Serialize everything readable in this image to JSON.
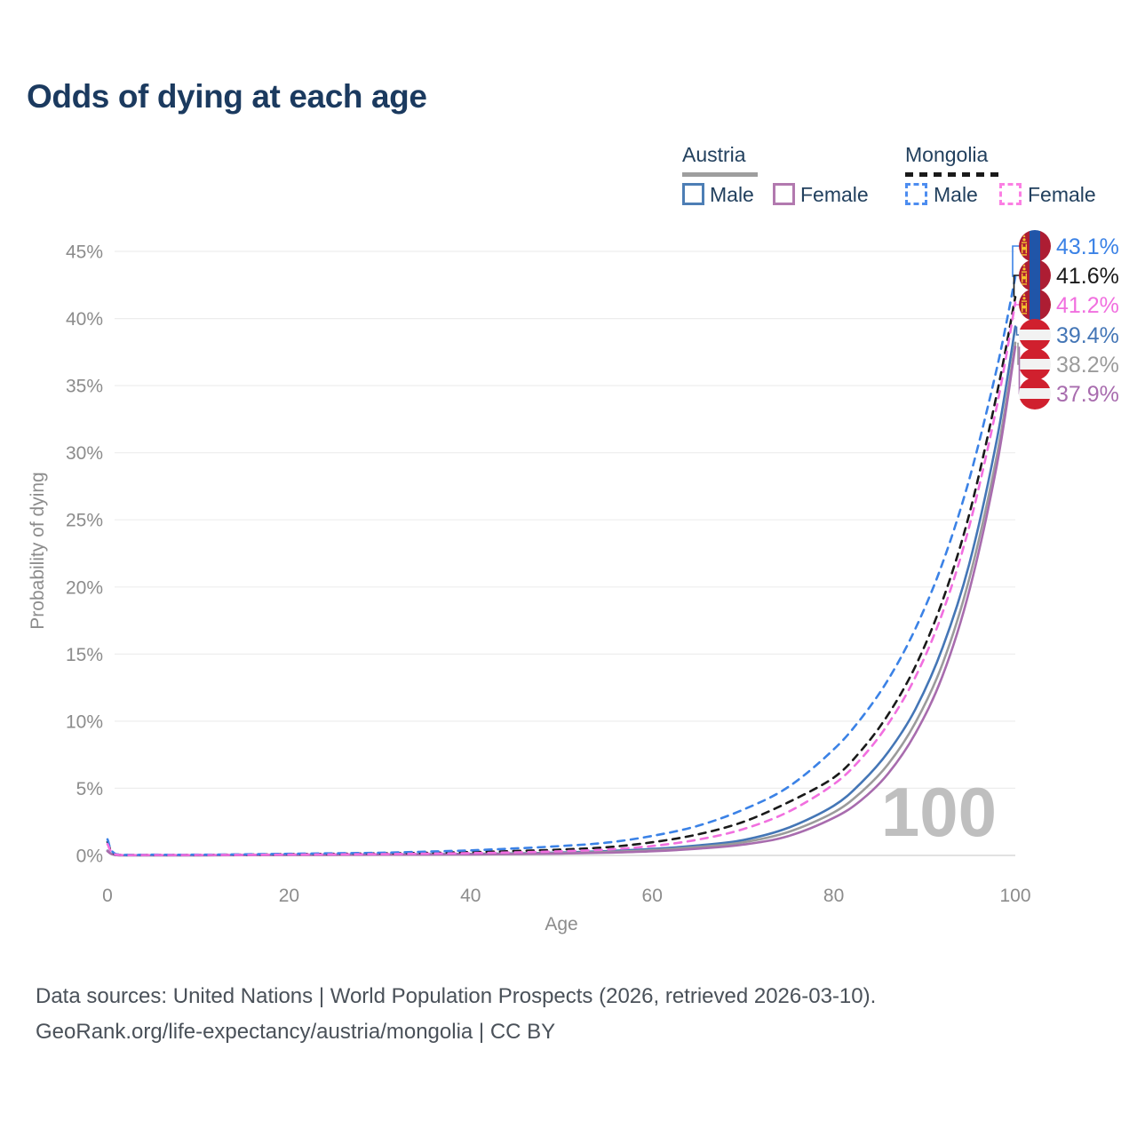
{
  "title": "Odds of dying at each age",
  "watermark_age": "100",
  "legend": {
    "groups": [
      {
        "country": "Austria",
        "style": "solid",
        "underline_color": "#9e9e9e",
        "items": [
          {
            "label": "Male",
            "color": "#4d7eb5"
          },
          {
            "label": "Female",
            "color": "#b279af"
          }
        ]
      },
      {
        "country": "Mongolia",
        "style": "dashed",
        "underline_color": "#1a1a1a",
        "items": [
          {
            "label": "Male",
            "color": "#4d8df0"
          },
          {
            "label": "Female",
            "color": "#fb7fe3"
          }
        ]
      }
    ]
  },
  "footer": {
    "line1": "Data sources: United Nations | World Population Prospects (2026, retrieved 2026-03-10).",
    "line2": "GeoRank.org/life-expectancy/austria/mongolia | CC BY"
  },
  "chart_data": {
    "type": "line",
    "title": "Odds of dying at each age",
    "xlabel": "Age",
    "ylabel": "Probability of dying",
    "xlim": [
      0,
      100
    ],
    "ylim_percent": [
      0,
      45
    ],
    "grid": "horizontal",
    "legend_position": "top-right",
    "x_ticks": [
      0,
      20,
      40,
      60,
      80,
      100
    ],
    "y_ticks_percent": [
      0,
      5,
      10,
      15,
      20,
      25,
      30,
      35,
      40,
      45
    ],
    "x": [
      0,
      1,
      5,
      10,
      15,
      20,
      25,
      30,
      35,
      40,
      45,
      50,
      55,
      60,
      65,
      70,
      75,
      80,
      83,
      86,
      89,
      92,
      95,
      98,
      100
    ],
    "series": [
      {
        "id": "mongolia-male",
        "country": "Mongolia",
        "sex": "Male",
        "flag": "mongolia",
        "style": "dashed",
        "color": "#3b82e6",
        "end_label": "43.1%",
        "end_value_percent": 43.1,
        "values_percent": [
          1.2,
          0.08,
          0.05,
          0.05,
          0.08,
          0.12,
          0.16,
          0.2,
          0.28,
          0.38,
          0.52,
          0.7,
          0.95,
          1.45,
          2.2,
          3.4,
          5.1,
          7.9,
          10.2,
          13.1,
          16.9,
          21.8,
          28.2,
          36.4,
          43.1
        ]
      },
      {
        "id": "mongolia-combined",
        "country": "Mongolia",
        "sex": "Both",
        "flag": "mongolia",
        "style": "dashed",
        "color": "#1a1a1a",
        "end_label": "41.6%",
        "end_value_percent": 41.6,
        "values_percent": [
          1.0,
          0.06,
          0.04,
          0.04,
          0.06,
          0.09,
          0.12,
          0.15,
          0.19,
          0.25,
          0.33,
          0.44,
          0.61,
          0.98,
          1.56,
          2.49,
          3.96,
          5.8,
          7.8,
          10.5,
          14.1,
          19.0,
          25.6,
          34.5,
          41.6
        ]
      },
      {
        "id": "mongolia-female",
        "country": "Mongolia",
        "sex": "Female",
        "flag": "mongolia",
        "style": "dashed",
        "color": "#f16fdf",
        "end_label": "41.2%",
        "end_value_percent": 41.2,
        "values_percent": [
          0.85,
          0.05,
          0.03,
          0.03,
          0.04,
          0.06,
          0.08,
          0.1,
          0.13,
          0.17,
          0.23,
          0.31,
          0.44,
          0.7,
          1.17,
          1.95,
          3.25,
          5.3,
          7.2,
          9.8,
          13.3,
          18.1,
          24.7,
          33.6,
          41.2
        ]
      },
      {
        "id": "austria-male",
        "country": "Austria",
        "sex": "Male",
        "flag": "austria",
        "style": "solid",
        "color": "#4476b6",
        "end_label": "39.4%",
        "end_value_percent": 39.4,
        "values_percent": [
          0.36,
          0.02,
          0.01,
          0.01,
          0.03,
          0.05,
          0.06,
          0.07,
          0.09,
          0.11,
          0.15,
          0.22,
          0.32,
          0.48,
          0.74,
          1.14,
          2.06,
          3.7,
          5.4,
          7.7,
          10.9,
          15.5,
          21.9,
          31.1,
          39.4
        ]
      },
      {
        "id": "austria-combined",
        "country": "Austria",
        "sex": "Both",
        "flag": "austria",
        "style": "solid",
        "color": "#9b9b9b",
        "end_label": "38.2%",
        "end_value_percent": 38.2,
        "values_percent": [
          0.34,
          0.02,
          0.01,
          0.01,
          0.02,
          0.04,
          0.05,
          0.06,
          0.07,
          0.09,
          0.13,
          0.18,
          0.26,
          0.4,
          0.62,
          0.97,
          1.75,
          3.2,
          4.7,
          6.8,
          9.9,
          14.3,
          20.8,
          29.9,
          38.2
        ]
      },
      {
        "id": "austria-female",
        "country": "Austria",
        "sex": "Female",
        "flag": "austria",
        "style": "solid",
        "color": "#a86cae",
        "end_label": "37.9%",
        "end_value_percent": 37.9,
        "values_percent": [
          0.31,
          0.02,
          0.01,
          0.01,
          0.02,
          0.03,
          0.04,
          0.05,
          0.06,
          0.07,
          0.1,
          0.14,
          0.2,
          0.31,
          0.5,
          0.8,
          1.44,
          2.8,
          4.1,
          6.1,
          9.1,
          13.4,
          19.9,
          29.2,
          37.9
        ]
      }
    ],
    "flag_colors": {
      "mongolia_red": "#ad1d33",
      "mongolia_blue": "#2055a8",
      "mongolia_yellow": "#f5c52f",
      "austria_red": "#d0202e",
      "austria_white": "#f2f2f2"
    }
  }
}
